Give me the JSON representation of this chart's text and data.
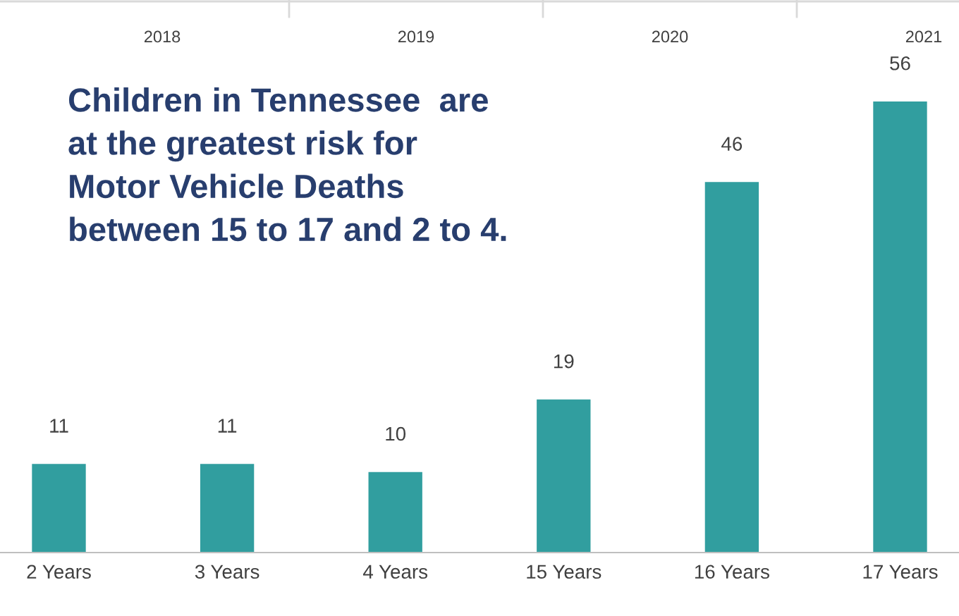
{
  "chart_data": {
    "type": "bar",
    "title": "Children in Tennessee  are\nat the greatest risk for\nMotor Vehicle Deaths\nbetween 15 to 17 and 2 to 4.",
    "categories": [
      "2 Years",
      "3 Years",
      "4 Years",
      "15 Years",
      "16 Years",
      "17 Years"
    ],
    "values": [
      11,
      11,
      10,
      19,
      46,
      56
    ],
    "color": "#319e9f",
    "data_labels": true,
    "annotations": [
      "2018",
      "2019",
      "2020",
      "2021"
    ]
  }
}
